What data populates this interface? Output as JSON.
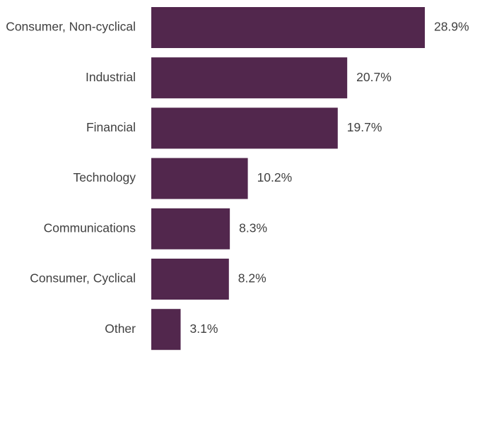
{
  "chart_data": {
    "type": "hbar",
    "categories": [
      "Consumer, Non-cyclical",
      "Industrial",
      "Financial",
      "Technology",
      "Communications",
      "Consumer, Cyclical",
      "Other"
    ],
    "values": [
      28.9,
      20.7,
      19.7,
      10.2,
      8.3,
      8.2,
      3.1
    ],
    "value_labels": [
      "28.9%",
      "20.7%",
      "19.7%",
      "10.2%",
      "8.3%",
      "8.2%",
      "3.1%"
    ],
    "color": "#52274d"
  }
}
